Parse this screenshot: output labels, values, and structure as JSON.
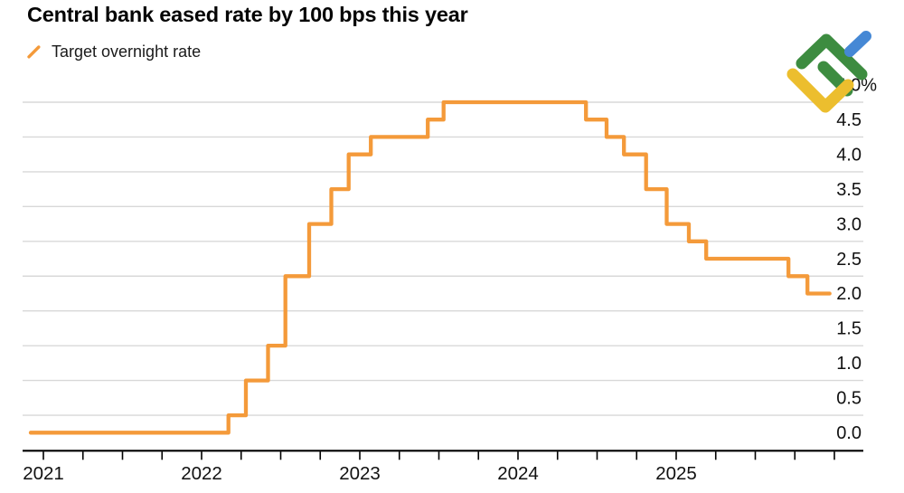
{
  "title": "Central bank eased rate by 100 bps this year",
  "legend": {
    "label": "Target overnight rate"
  },
  "colors": {
    "line": "#F49A3A",
    "grid": "#D8D8D8",
    "axis": "#000000",
    "label_text": "#111111",
    "background": "#FFFFFF",
    "logo_green": "#3D8C40",
    "logo_yellow": "#ECBE2E",
    "logo_blue": "#4588D5"
  },
  "chart_data": {
    "type": "line",
    "step_style": "step-after",
    "title": "Central bank eased rate by 100 bps this year",
    "unit": "%",
    "grid": "horizontal",
    "legend_position": "top-left",
    "y_axis": {
      "side": "right",
      "range": [
        0,
        5
      ],
      "tick_values": [
        5.0,
        4.5,
        4.0,
        3.5,
        3.0,
        2.5,
        2.0,
        1.5,
        1.0,
        0.5,
        0.0
      ],
      "tick_labels": [
        "5.0%",
        "4.5",
        "4.0",
        "3.5",
        "3.0",
        "2.5",
        "2.0",
        "1.5",
        "1.0",
        "0.5",
        "0.0"
      ]
    },
    "x_axis": {
      "range_years": [
        2020.8686,
        2026.1829
      ],
      "year_labels": [
        "2021",
        "2022",
        "2023",
        "2024",
        "2025"
      ],
      "year_label_values": [
        2021,
        2022,
        2023,
        2024,
        2025
      ],
      "minor_tick_interval_years": 0.25,
      "tick_start_year": 2021,
      "tick_end_year": 2026
    },
    "series": [
      {
        "name": "Target overnight rate",
        "color": "#F49A3A",
        "points_t_rate": [
          [
            2020.92,
            0.25
          ],
          [
            2022.17,
            0.5
          ],
          [
            2022.28,
            1.0
          ],
          [
            2022.42,
            1.5
          ],
          [
            2022.53,
            2.5
          ],
          [
            2022.68,
            3.25
          ],
          [
            2022.82,
            3.75
          ],
          [
            2022.93,
            4.25
          ],
          [
            2023.07,
            4.5
          ],
          [
            2023.43,
            4.75
          ],
          [
            2023.53,
            5.0
          ],
          [
            2024.43,
            4.75
          ],
          [
            2024.56,
            4.5
          ],
          [
            2024.67,
            4.25
          ],
          [
            2024.81,
            3.75
          ],
          [
            2024.94,
            3.25
          ],
          [
            2025.08,
            3.0
          ],
          [
            2025.19,
            2.75
          ],
          [
            2025.71,
            2.5
          ],
          [
            2025.83,
            2.25
          ]
        ],
        "end_t": 2025.97,
        "end_value": 2.25
      }
    ]
  }
}
